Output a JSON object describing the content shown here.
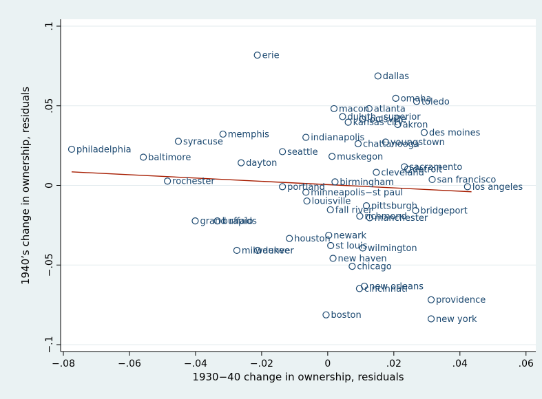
{
  "chart_data": {
    "type": "scatter",
    "xlabel": "1930−40 change in ownership, residuals",
    "ylabel": "1940’s change in ownership, residuals",
    "xlim": [
      -0.08,
      0.06
    ],
    "ylim": [
      -0.1,
      0.1
    ],
    "grid": "horizontal",
    "legend": "none",
    "colors": {
      "marker": "#1a476f",
      "fit_line": "#a61c00",
      "plot_bg": "#ffffff",
      "outer_bg": "#eaf2f3",
      "grid": "#e3ebee"
    },
    "xticks": [
      {
        "value": -0.08,
        "label": "−.08"
      },
      {
        "value": -0.06,
        "label": "−.06"
      },
      {
        "value": -0.04,
        "label": "−.04"
      },
      {
        "value": -0.02,
        "label": "−.02"
      },
      {
        "value": 0,
        "label": "0"
      },
      {
        "value": 0.02,
        "label": ".02"
      },
      {
        "value": 0.04,
        "label": ".04"
      },
      {
        "value": 0.06,
        "label": ".06"
      }
    ],
    "yticks": [
      {
        "value": -0.1,
        "label": "−.1"
      },
      {
        "value": -0.05,
        "label": "−.05"
      },
      {
        "value": 0,
        "label": "0"
      },
      {
        "value": 0.05,
        "label": ".05"
      },
      {
        "value": 0.1,
        "label": ".1"
      }
    ],
    "fit_line": {
      "x": [
        -0.0775,
        0.0435
      ],
      "y": [
        0.0085,
        -0.004
      ]
    },
    "points": [
      {
        "label": "erie",
        "x": -0.0213,
        "y": 0.0818
      },
      {
        "label": "dallas",
        "x": 0.0152,
        "y": 0.0687
      },
      {
        "label": "omaha",
        "x": 0.0206,
        "y": 0.0547
      },
      {
        "label": "toledo",
        "x": 0.0269,
        "y": 0.0527
      },
      {
        "label": "macon",
        "x": 0.0019,
        "y": 0.0482
      },
      {
        "label": "atlanta",
        "x": 0.0125,
        "y": 0.0482
      },
      {
        "label": "duluth−superior",
        "x": 0.0045,
        "y": 0.0432
      },
      {
        "label": "louisville",
        "x": 0.0105,
        "y": 0.0417
      },
      {
        "label": "kansas city",
        "x": 0.0062,
        "y": 0.0397
      },
      {
        "label": "akron",
        "x": 0.0212,
        "y": 0.0382
      },
      {
        "label": "des moines",
        "x": 0.0292,
        "y": 0.0332
      },
      {
        "label": "memphis",
        "x": -0.0317,
        "y": 0.0322
      },
      {
        "label": "indianapolis",
        "x": -0.0066,
        "y": 0.0302
      },
      {
        "label": "syracuse",
        "x": -0.0452,
        "y": 0.0277
      },
      {
        "label": "chattanooga",
        "x": 0.0092,
        "y": 0.0262
      },
      {
        "label": "youngstown",
        "x": 0.0175,
        "y": 0.0272
      },
      {
        "label": "philadelphia",
        "x": -0.0775,
        "y": 0.0227
      },
      {
        "label": "seattle",
        "x": -0.0137,
        "y": 0.0212
      },
      {
        "label": "muskegon",
        "x": 0.0013,
        "y": 0.0182
      },
      {
        "label": "baltimore",
        "x": -0.0558,
        "y": 0.0177
      },
      {
        "label": "dayton",
        "x": -0.0262,
        "y": 0.0142
      },
      {
        "label": "sacramento",
        "x": 0.0232,
        "y": 0.0117
      },
      {
        "label": "detroit",
        "x": 0.0242,
        "y": 0.0102
      },
      {
        "label": "cleveland",
        "x": 0.0147,
        "y": 0.0082
      },
      {
        "label": "san francisco",
        "x": 0.0316,
        "y": 0.0037
      },
      {
        "label": "rochester",
        "x": -0.0485,
        "y": 0.0027
      },
      {
        "label": "birmingham",
        "x": 0.0022,
        "y": 0.0022
      },
      {
        "label": "portland",
        "x": -0.0137,
        "y": -0.0008
      },
      {
        "label": "los angeles",
        "x": 0.0423,
        "y": -0.0008
      },
      {
        "label": "minneapolis−st paul",
        "x": -0.0066,
        "y": -0.0043
      },
      {
        "label": "louisville",
        "x": -0.0063,
        "y": -0.0098
      },
      {
        "label": "pittsburgh",
        "x": 0.0117,
        "y": -0.0128
      },
      {
        "label": "fall river",
        "x": 0.0008,
        "y": -0.0153
      },
      {
        "label": "bridgeport",
        "x": 0.0266,
        "y": -0.0158
      },
      {
        "label": "richmond",
        "x": 0.0097,
        "y": -0.0193
      },
      {
        "label": "manchester",
        "x": 0.0127,
        "y": -0.0203
      },
      {
        "label": "grand rapids",
        "x": -0.0401,
        "y": -0.0223
      },
      {
        "label": "buffalo",
        "x": -0.0334,
        "y": -0.0223
      },
      {
        "label": "newark",
        "x": 0.0003,
        "y": -0.0313
      },
      {
        "label": "houston",
        "x": -0.0116,
        "y": -0.0333
      },
      {
        "label": "st louis",
        "x": 0.0009,
        "y": -0.0378
      },
      {
        "label": "wilmington",
        "x": 0.0106,
        "y": -0.0393
      },
      {
        "label": "milwaukee",
        "x": -0.0275,
        "y": -0.0408
      },
      {
        "label": "denver",
        "x": -0.0212,
        "y": -0.0408
      },
      {
        "label": "new haven",
        "x": 0.0016,
        "y": -0.0458
      },
      {
        "label": "chicago",
        "x": 0.0074,
        "y": -0.0508
      },
      {
        "label": "new orleans",
        "x": 0.0111,
        "y": -0.0633
      },
      {
        "label": "cincinnati",
        "x": 0.0096,
        "y": -0.0648
      },
      {
        "label": "providence",
        "x": 0.0313,
        "y": -0.0718
      },
      {
        "label": "boston",
        "x": -0.0005,
        "y": -0.0813
      },
      {
        "label": "new york",
        "x": 0.0313,
        "y": -0.0838
      }
    ]
  }
}
